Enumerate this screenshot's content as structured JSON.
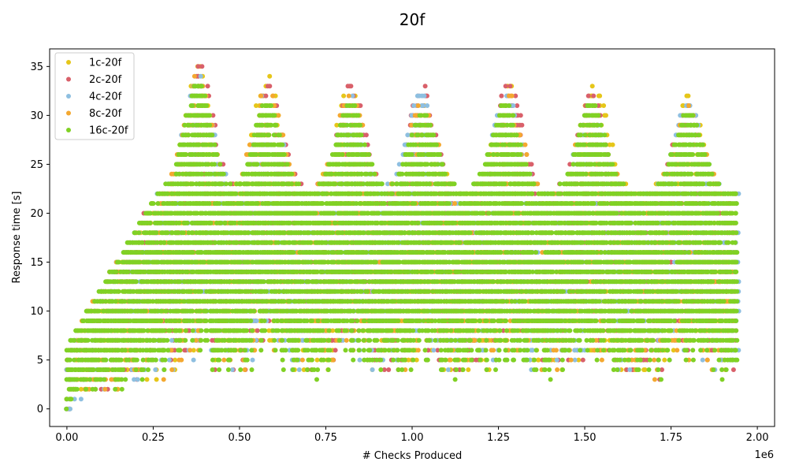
{
  "chart_data": {
    "type": "scatter",
    "title": "20f",
    "xlabel": "# Checks Produced",
    "ylabel": "Response time [s]",
    "x_offset_label": "1e6",
    "xlim": [
      -0.05,
      2.05
    ],
    "ylim": [
      -1.8,
      36.8
    ],
    "x_ticks": [
      0.0,
      0.25,
      0.5,
      0.75,
      1.0,
      1.25,
      1.5,
      1.75,
      2.0
    ],
    "x_tick_labels": [
      "0.00",
      "0.25",
      "0.50",
      "0.75",
      "1.00",
      "1.25",
      "1.50",
      "1.75",
      "2.00"
    ],
    "y_ticks": [
      0,
      5,
      10,
      15,
      20,
      25,
      30,
      35
    ],
    "y_tick_labels": [
      "0",
      "5",
      "10",
      "15",
      "20",
      "25",
      "30",
      "35"
    ],
    "grid": false,
    "legend_position": "top-left",
    "series": [
      {
        "name": "1c-20f",
        "color": "#e6c619",
        "x_max": 1.935,
        "peaks": [
          [
            0.38,
            35
          ],
          [
            0.58,
            34
          ],
          [
            0.82,
            33
          ],
          [
            1.03,
            31
          ],
          [
            1.28,
            33
          ],
          [
            1.53,
            33
          ],
          [
            1.8,
            32
          ]
        ],
        "y_range": [
          0,
          35
        ]
      },
      {
        "name": "2c-20f",
        "color": "#d9606a",
        "x_max": 1.94,
        "peaks": [
          [
            0.385,
            35
          ],
          [
            0.585,
            33
          ],
          [
            0.825,
            33
          ],
          [
            1.03,
            33
          ],
          [
            1.28,
            33
          ],
          [
            1.52,
            32
          ],
          [
            1.8,
            31
          ]
        ],
        "y_range": [
          0,
          35
        ]
      },
      {
        "name": "4c-20f",
        "color": "#8ebfe0",
        "x_max": 1.945,
        "peaks": [
          [
            0.38,
            34
          ],
          [
            0.58,
            33
          ],
          [
            0.82,
            32
          ],
          [
            1.025,
            32
          ],
          [
            1.27,
            32
          ],
          [
            1.52,
            31
          ],
          [
            1.8,
            31
          ]
        ],
        "y_range": [
          0,
          34
        ]
      },
      {
        "name": "8c-20f",
        "color": "#f4a830",
        "x_max": 1.935,
        "peaks": [
          [
            0.38,
            34
          ],
          [
            0.58,
            33
          ],
          [
            0.82,
            32
          ],
          [
            1.03,
            31
          ],
          [
            1.28,
            32
          ],
          [
            1.52,
            32
          ],
          [
            1.8,
            31
          ]
        ],
        "y_range": [
          0,
          34
        ]
      },
      {
        "name": "16c-20f",
        "color": "#80d124",
        "x_max": 1.94,
        "peaks": [
          [
            0.38,
            33
          ],
          [
            0.58,
            31
          ],
          [
            0.82,
            31
          ],
          [
            1.03,
            30
          ],
          [
            1.27,
            31
          ],
          [
            1.52,
            31
          ],
          [
            1.8,
            30
          ]
        ],
        "y_range": [
          0,
          33
        ]
      }
    ]
  }
}
